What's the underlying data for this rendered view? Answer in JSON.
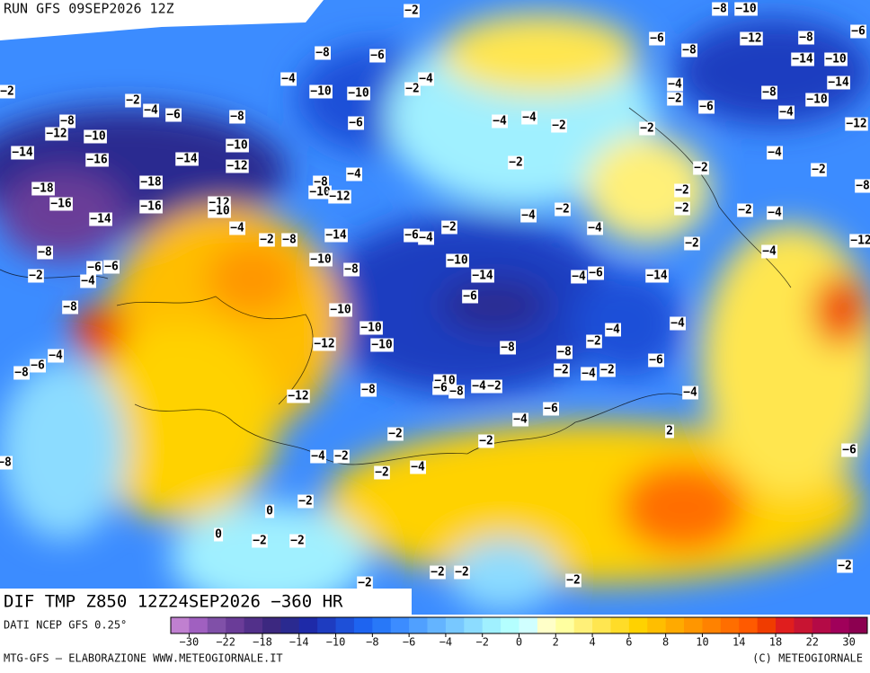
{
  "header": {
    "run": "RUN GFS 09SEP2026 12Z"
  },
  "footer": {
    "title": "DIF TMP Z850 12Z24SEP2026 −360 HR",
    "source": "DATI NCEP GFS 0.25°",
    "credits": "MTG-GFS – ELABORAZIONE WWW.METEOGIORNALE.IT",
    "copyright": "(C) METEOGIORNALE"
  },
  "colorbar": {
    "colors": [
      "#c080d0",
      "#a060c0",
      "#8050a8",
      "#6a3c98",
      "#52308a",
      "#3c2880",
      "#2a2a90",
      "#1e2aa8",
      "#1e3cc0",
      "#1e50d8",
      "#1e64f0",
      "#2878f8",
      "#3c8cff",
      "#50a0ff",
      "#64b4ff",
      "#78c8ff",
      "#8cdcff",
      "#a0f0ff",
      "#b4ffff",
      "#d0ffff",
      "#ffffc8",
      "#ffffa0",
      "#fff078",
      "#ffe650",
      "#ffdc28",
      "#ffd200",
      "#ffbe00",
      "#ffaa00",
      "#ff9600",
      "#ff8200",
      "#ff6e00",
      "#ff5a00",
      "#f03c00",
      "#e01e1e",
      "#c81432",
      "#b40a46",
      "#a0005a",
      "#8c0050"
    ],
    "ticks": [
      {
        "value": -30,
        "label": "−30"
      },
      {
        "value": -22,
        "label": "−22"
      },
      {
        "value": -18,
        "label": "−18"
      },
      {
        "value": -14,
        "label": "−14"
      },
      {
        "value": -10,
        "label": "−10"
      },
      {
        "value": -8,
        "label": "−8"
      },
      {
        "value": -6,
        "label": "−6"
      },
      {
        "value": -4,
        "label": "−4"
      },
      {
        "value": -2,
        "label": "−2"
      },
      0,
      2,
      4,
      6,
      8,
      10,
      14,
      18,
      22,
      30
    ]
  },
  "contour_labels": [
    "−2",
    "−8",
    "−10",
    "−6",
    "−12",
    "−8",
    "−6",
    "−8",
    "−6",
    "−8",
    "−14",
    "−10",
    "−2",
    "−4",
    "−2",
    "−4",
    "−10",
    "−10",
    "−4",
    "−2",
    "−8",
    "−10",
    "−14",
    "−2",
    "−4",
    "−6",
    "−8",
    "−8",
    "−12",
    "−10",
    "−6",
    "−4",
    "−4",
    "−2",
    "−2",
    "−6",
    "−4",
    "−12",
    "−14",
    "−16",
    "−14",
    "−10",
    "−12",
    "−2",
    "−2",
    "−4",
    "−2",
    "−18",
    "−18",
    "−16",
    "−16",
    "−8",
    "−10",
    "−12",
    "−4",
    "−2",
    "−2",
    "−8",
    "−12",
    "−10",
    "−14",
    "−4",
    "−2",
    "−2",
    "−4",
    "−2",
    "−4",
    "−2",
    "−8",
    "−14",
    "−6",
    "−4",
    "−4",
    "−2",
    "−4",
    "−12",
    "−8",
    "−6",
    "−6",
    "−10",
    "−8",
    "−10",
    "−14",
    "−6",
    "−4",
    "−6",
    "−14",
    "−2",
    "−4",
    "−8",
    "−10",
    "−10",
    "−4",
    "−4",
    "−12",
    "−10",
    "−8",
    "−8",
    "−2",
    "−4",
    "−6",
    "−8",
    "−6",
    "−2",
    "−4",
    "−2",
    "−12",
    "−8",
    "−10",
    "−6",
    "−8",
    "−4",
    "−2",
    "−4",
    "−6",
    "−4",
    "−2",
    "−2",
    "2",
    "−6",
    "−8",
    "−4",
    "−2",
    "−2",
    "−4",
    "−2",
    "0",
    "0",
    "−2",
    "−2",
    "−2",
    "−2",
    "−2",
    "−2",
    "−2"
  ]
}
